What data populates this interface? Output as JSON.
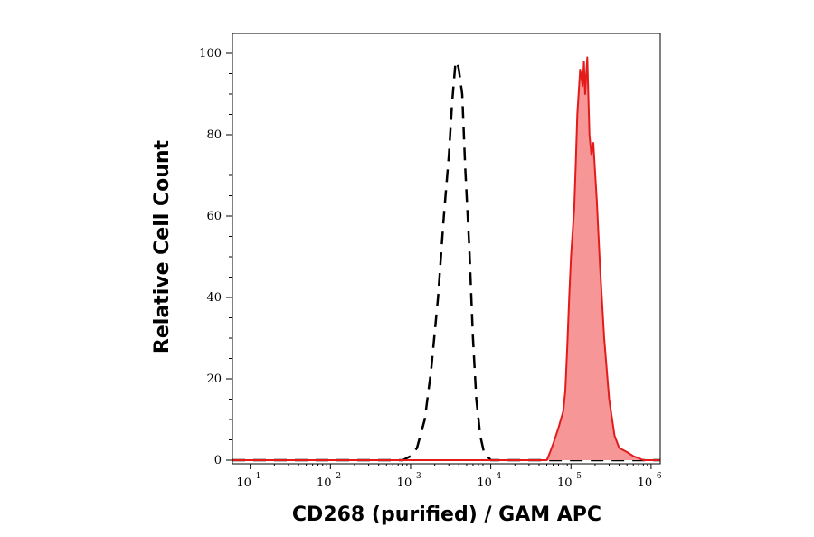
{
  "chart_data": {
    "type": "area",
    "title": "",
    "xlabel": "CD268 (purified) / GAM APC",
    "ylabel": "Relative Cell Count",
    "x_scale": "log",
    "xlim": [
      6,
      1300000
    ],
    "ylim": [
      0,
      100
    ],
    "x_ticks": [
      {
        "value": 10,
        "base": "10",
        "exp": "1"
      },
      {
        "value": 100,
        "base": "10",
        "exp": "2"
      },
      {
        "value": 1000,
        "base": "10",
        "exp": "3"
      },
      {
        "value": 10000,
        "base": "10",
        "exp": "4"
      },
      {
        "value": 100000,
        "base": "10",
        "exp": "5"
      },
      {
        "value": 1000000,
        "base": "10",
        "exp": "6"
      }
    ],
    "y_ticks": [
      0,
      20,
      40,
      60,
      80,
      100
    ],
    "grid": false,
    "legend": "none",
    "series": [
      {
        "style": "dashed",
        "color": "#000000",
        "fill": "none",
        "x": [
          6,
          800,
          1000,
          1200,
          1500,
          1800,
          2200,
          2600,
          3000,
          3300,
          3600,
          3800,
          4000,
          4400,
          4800,
          5400,
          6000,
          6600,
          7400,
          8200,
          9000,
          10000,
          1300000
        ],
        "y": [
          0,
          0,
          1,
          3,
          10,
          22,
          40,
          60,
          75,
          88,
          97,
          98,
          96,
          90,
          72,
          52,
          30,
          15,
          6,
          2,
          1,
          0,
          0
        ]
      },
      {
        "style": "solid",
        "color": "#e31b1b",
        "fill": "#f79696",
        "x": [
          6,
          50000,
          55000,
          60000,
          70000,
          80000,
          85000,
          90000,
          95000,
          100000,
          110000,
          115000,
          120000,
          130000,
          140000,
          145000,
          150000,
          160000,
          170000,
          180000,
          190000,
          210000,
          230000,
          260000,
          300000,
          350000,
          400000,
          500000,
          600000,
          700000,
          800000,
          1300000
        ],
        "y": [
          0,
          0,
          2,
          4,
          8,
          12,
          17,
          28,
          40,
          50,
          62,
          73,
          85,
          96,
          92,
          98,
          90,
          99,
          80,
          75,
          78,
          64,
          48,
          30,
          15,
          6,
          3,
          2,
          1,
          0.5,
          0,
          0
        ]
      }
    ]
  }
}
